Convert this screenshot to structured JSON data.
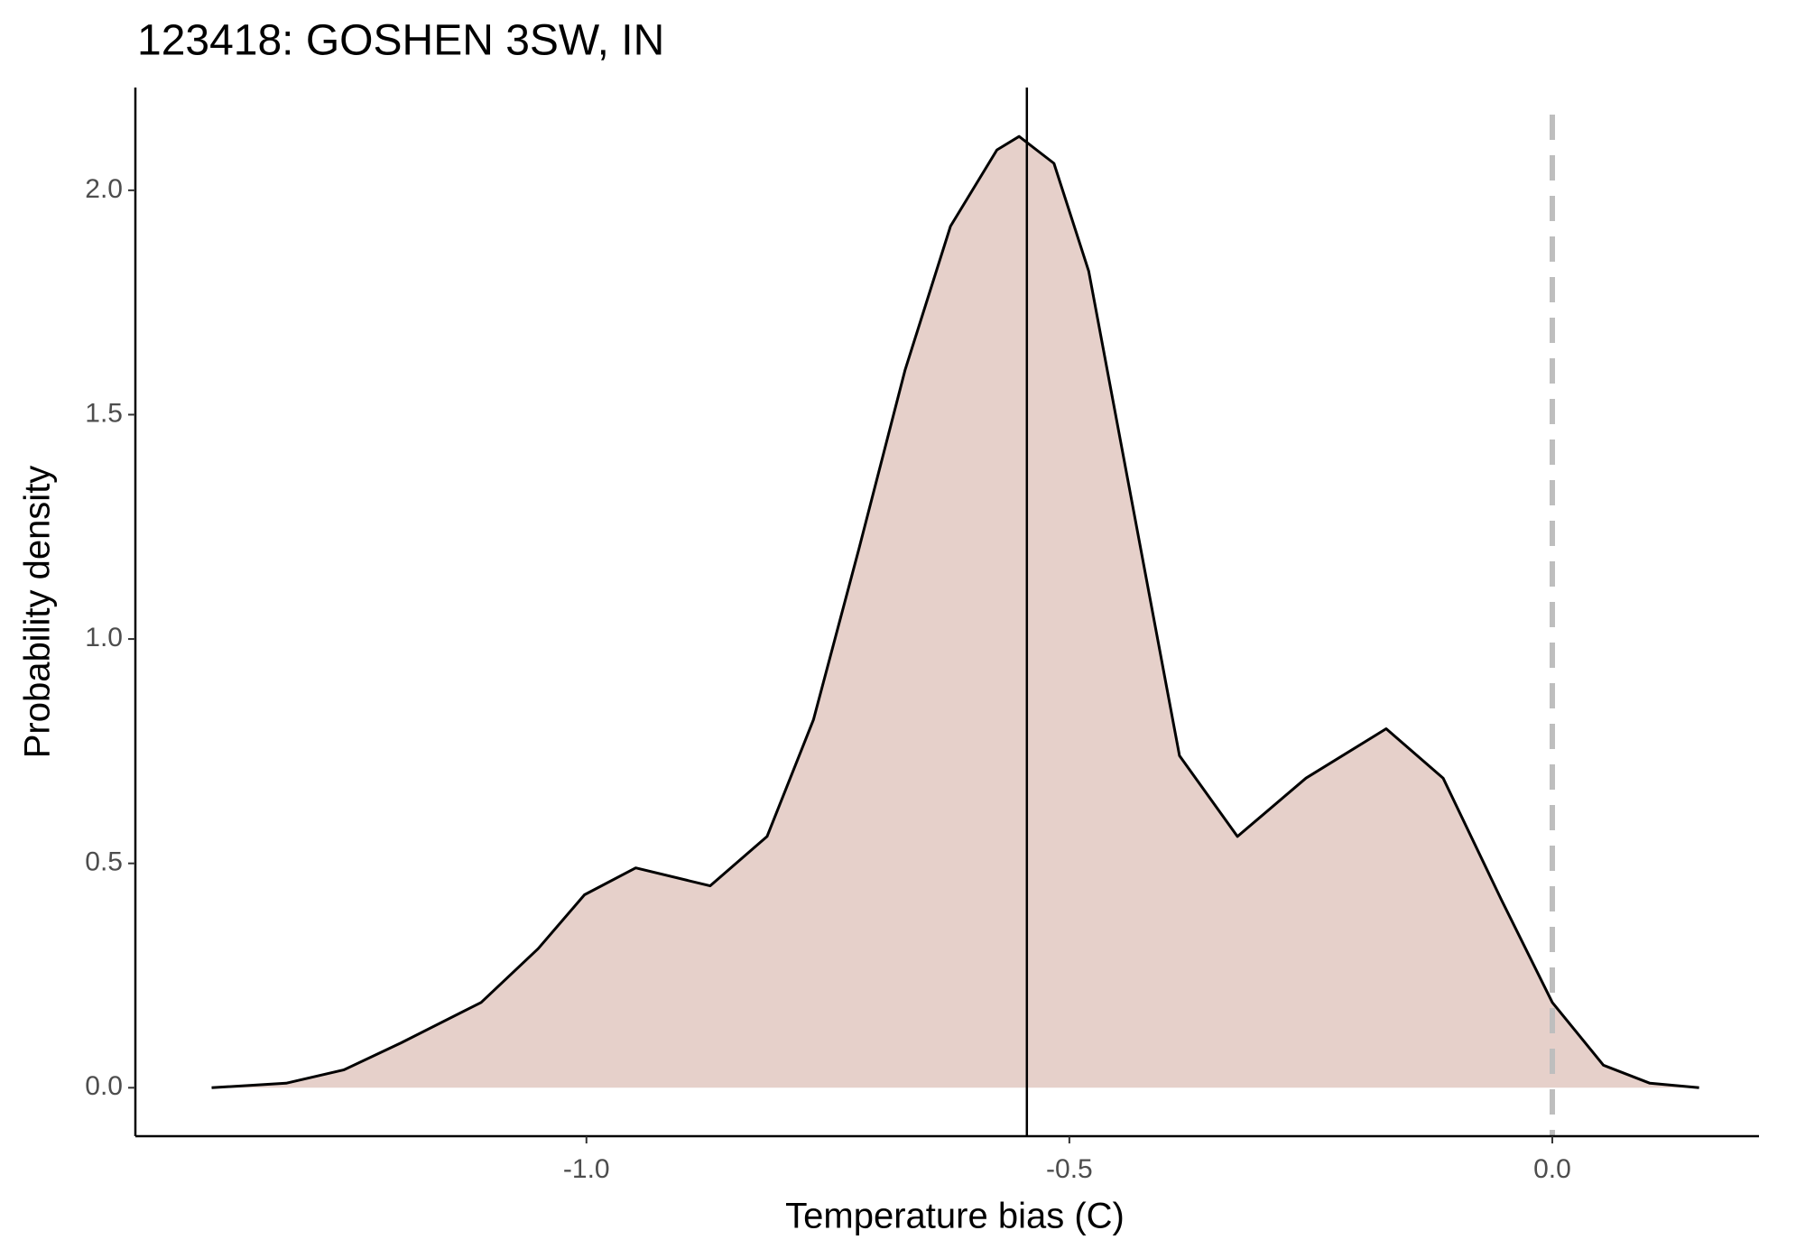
{
  "chart_data": {
    "type": "area",
    "title": "123418: GOSHEN 3SW, IN",
    "x_label": "Temperature bias (C)",
    "y_label": "Probability density",
    "x": [
      -1.388,
      -1.311,
      -1.251,
      -1.192,
      -1.109,
      -1.05,
      -1.002,
      -0.949,
      -0.872,
      -0.813,
      -0.765,
      -0.718,
      -0.67,
      -0.623,
      -0.575,
      -0.552,
      -0.516,
      -0.48,
      -0.433,
      -0.386,
      -0.326,
      -0.255,
      -0.172,
      -0.113,
      -0.053,
      0.0,
      0.053,
      0.101,
      0.152
    ],
    "values": [
      0,
      0.01,
      0.04,
      0.1,
      0.19,
      0.31,
      0.43,
      0.49,
      0.45,
      0.56,
      0.82,
      1.2,
      1.6,
      1.92,
      2.09,
      2.12,
      2.06,
      1.82,
      1.28,
      0.74,
      0.56,
      0.69,
      0.8,
      0.69,
      0.42,
      0.19,
      0.05,
      0.01,
      0
    ],
    "fill_color": "#e6d0ca",
    "line_color": "#000000",
    "vlines": [
      {
        "x": -0.544,
        "color": "#000000",
        "dashed": false
      },
      {
        "x": 0,
        "color": "#bebebe",
        "dashed": true
      }
    ],
    "xlim": [
      -1.467,
      0.214
    ],
    "ylim": [
      -0.108,
      2.229
    ],
    "xticks": [
      {
        "value": -1,
        "label": "-1.0"
      },
      -0.5,
      {
        "value": 0,
        "label": "0.0"
      }
    ],
    "yticks": [
      {
        "value": 0,
        "label": "0.0"
      },
      0.5,
      {
        "value": 1,
        "label": "1.0"
      },
      1.5,
      {
        "value": 2,
        "label": "2.0"
      }
    ],
    "grid": false
  }
}
